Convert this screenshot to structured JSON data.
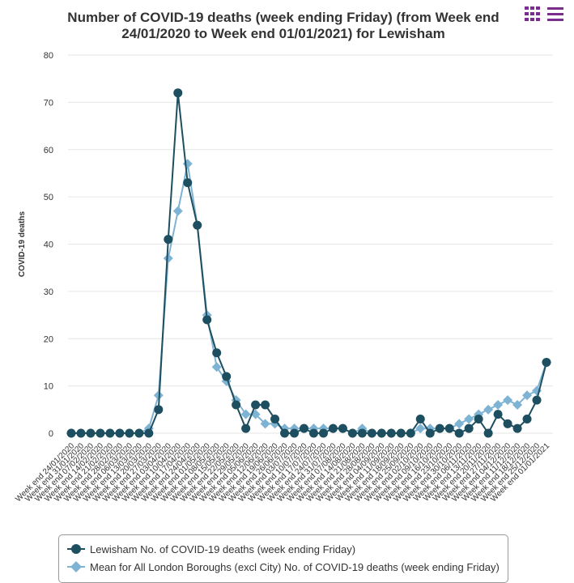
{
  "colors": {
    "lewisham": "#1d4f60",
    "london": "#7fb3d3",
    "menu": "#7b2d8e",
    "grid": "#e6e6e6"
  },
  "menu": {
    "grid_icon": "grid-icon",
    "list_icon": "hamburger-menu-icon"
  },
  "chart_data": {
    "type": "line",
    "title": "Number of COVID-19 deaths (week ending Friday) (from Week end 24/01/2020 to Week end 01/01/2021) for Lewisham",
    "ylabel": "COVID-19 deaths",
    "xlabel": "",
    "ylim": [
      0,
      80
    ],
    "yticks": [
      0,
      10,
      20,
      30,
      40,
      50,
      60,
      70,
      80
    ],
    "grid": true,
    "legend_position": "bottom",
    "categories": [
      "Week end 24/01/2020",
      "Week end 31/01/2020",
      "Week end 07/02/2020",
      "Week end 14/02/2020",
      "Week end 21/02/2020",
      "Week end 28/02/2020",
      "Week end 06/03/2020",
      "Week end 13/03/2020",
      "Week end 20/03/2020",
      "Week end 27/03/2020",
      "Week end 03/04/2020",
      "Week end 10/04/2020",
      "Week end 17/04/2020",
      "Week end 24/04/2020",
      "Week end 01/05/2020",
      "Week end 08/05/2020",
      "Week end 15/05/2020",
      "Week end 22/05/2020",
      "Week end 29/05/2020",
      "Week end 05/06/2020",
      "Week end 12/06/2020",
      "Week end 19/06/2020",
      "Week end 26/06/2020",
      "Week end 03/07/2020",
      "Week end 10/07/2020",
      "Week end 17/07/2020",
      "Week end 24/07/2020",
      "Week end 31/07/2020",
      "Week end 07/08/2020",
      "Week end 14/08/2020",
      "Week end 21/08/2020",
      "Week end 28/08/2020",
      "Week end 04/09/2020",
      "Week end 11/09/2020",
      "Week end 18/09/2020",
      "Week end 25/09/2020",
      "Week end 02/10/2020",
      "Week end 09/10/2020",
      "Week end 16/10/2020",
      "Week end 23/10/2020",
      "Week end 30/10/2020",
      "Week end 06/11/2020",
      "Week end 13/11/2020",
      "Week end 20/11/2020",
      "Week end 27/11/2020",
      "Week end 04/12/2020",
      "Week end 11/12/2020",
      "Week end 18/12/2020",
      "Week end 25/12/2020",
      "Week end 01/01/2021"
    ],
    "series": [
      {
        "name": "Lewisham No. of COVID-19 deaths (week ending Friday)",
        "marker": "circle",
        "values": [
          0,
          0,
          0,
          0,
          0,
          0,
          0,
          0,
          0,
          5,
          41,
          72,
          53,
          44,
          24,
          17,
          12,
          6,
          1,
          6,
          6,
          3,
          0,
          0,
          1,
          0,
          0,
          1,
          1,
          0,
          0,
          0,
          0,
          0,
          0,
          0,
          3,
          0,
          1,
          1,
          0,
          1,
          3,
          0,
          4,
          2,
          1,
          3,
          7,
          15
        ]
      },
      {
        "name": "Mean for All London Boroughs (excl City) No. of COVID-19 deaths (week ending Friday)",
        "marker": "diamond",
        "values": [
          0,
          0,
          0,
          0,
          0,
          0,
          0,
          0,
          1,
          8,
          37,
          47,
          57,
          44,
          25,
          14,
          11,
          7,
          4,
          4,
          2,
          2,
          1,
          1,
          1,
          1,
          1,
          1,
          1,
          0,
          1,
          0,
          0,
          0,
          0,
          0,
          1,
          1,
          1,
          1,
          2,
          3,
          4,
          5,
          6,
          7,
          6,
          8,
          9,
          15
        ]
      }
    ]
  }
}
